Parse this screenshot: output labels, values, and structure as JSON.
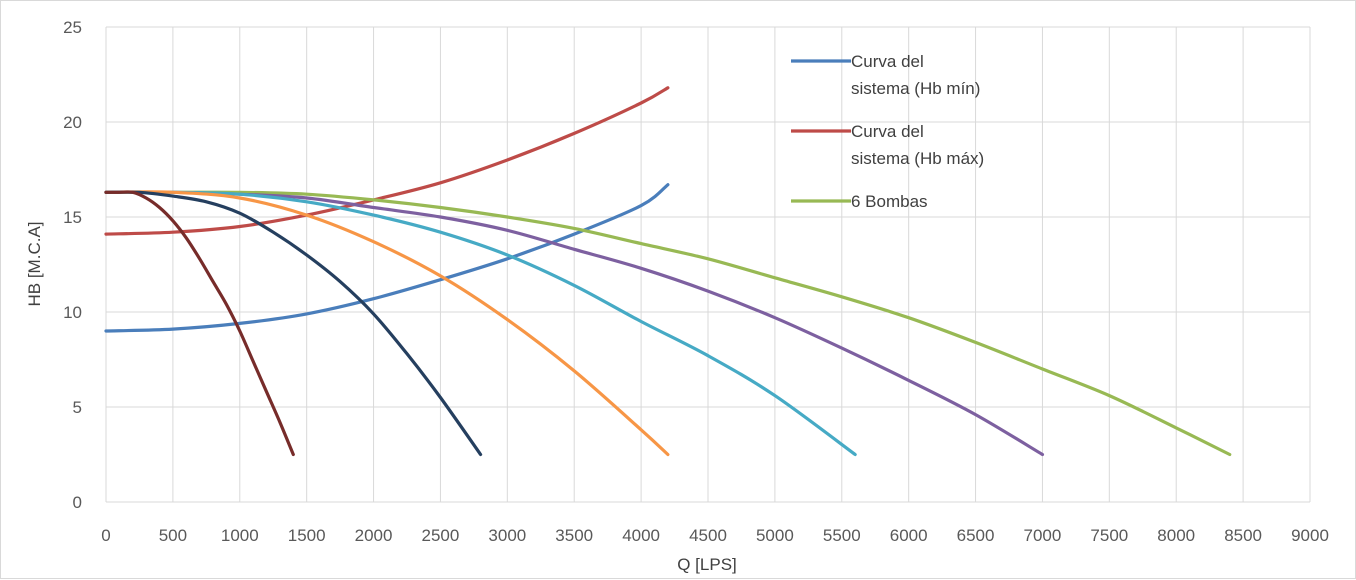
{
  "chart_data": {
    "type": "line",
    "title": "",
    "xlabel": "Q [LPS]",
    "ylabel": "HB [M.C.A]",
    "xlim": [
      0,
      9000
    ],
    "ylim": [
      0,
      25
    ],
    "x_ticks": [
      "0",
      "500",
      "1000",
      "1500",
      "2000",
      "2500",
      "3000",
      "3500",
      "4000",
      "4500",
      "5000",
      "5500",
      "6000",
      "6500",
      "7000",
      "7500",
      "8000",
      "8500",
      "9000"
    ],
    "y_ticks": [
      "0",
      "5",
      "10",
      "15",
      "20",
      "25"
    ],
    "grid": true,
    "legend_position": "top-right",
    "series": [
      {
        "name": "Curva del sistema (Hb mín)",
        "legend_lines": [
          "Curva del",
          "sistema (Hb mín)"
        ],
        "color": "#4a7ebb",
        "in_legend": true,
        "x": [
          0,
          500,
          1000,
          1500,
          2000,
          2500,
          3000,
          3500,
          4000,
          4200
        ],
        "y": [
          9.0,
          9.1,
          9.4,
          9.9,
          10.7,
          11.7,
          12.8,
          14.1,
          15.6,
          16.7
        ]
      },
      {
        "name": "Curva del sistema (Hb máx)",
        "legend_lines": [
          "Curva del",
          "sistema (Hb máx)"
        ],
        "color": "#be4b48",
        "in_legend": true,
        "x": [
          0,
          500,
          1000,
          1500,
          2000,
          2500,
          3000,
          3500,
          4000,
          4200
        ],
        "y": [
          14.1,
          14.2,
          14.5,
          15.1,
          15.9,
          16.8,
          18.0,
          19.4,
          21.0,
          21.8
        ]
      },
      {
        "name": "6 Bombas",
        "legend_lines": [
          "6 Bombas"
        ],
        "color": "#98b954",
        "in_legend": true,
        "x": [
          0,
          500,
          1000,
          1500,
          2000,
          2500,
          3000,
          3500,
          4000,
          4500,
          5000,
          5500,
          6000,
          6500,
          7000,
          7500,
          8000,
          8400
        ],
        "y": [
          16.3,
          16.3,
          16.3,
          16.2,
          15.9,
          15.5,
          15.0,
          14.4,
          13.6,
          12.8,
          11.8,
          10.8,
          9.7,
          8.4,
          7.0,
          5.6,
          3.9,
          2.5
        ]
      },
      {
        "color": "#7d60a0",
        "in_legend": false,
        "x": [
          0,
          500,
          1000,
          1500,
          2000,
          2500,
          3000,
          3500,
          4000,
          4500,
          5000,
          5500,
          6000,
          6500,
          7000
        ],
        "y": [
          16.3,
          16.3,
          16.2,
          16.0,
          15.5,
          15.0,
          14.3,
          13.3,
          12.3,
          11.1,
          9.7,
          8.1,
          6.4,
          4.6,
          2.5
        ]
      },
      {
        "color": "#46aac5",
        "in_legend": false,
        "x": [
          0,
          500,
          1000,
          1500,
          2000,
          2500,
          3000,
          3500,
          4000,
          4500,
          5000,
          5600
        ],
        "y": [
          16.3,
          16.3,
          16.2,
          15.8,
          15.1,
          14.2,
          13.0,
          11.4,
          9.5,
          7.7,
          5.6,
          2.5
        ]
      },
      {
        "color": "#f79646",
        "in_legend": false,
        "x": [
          0,
          500,
          1000,
          1500,
          2000,
          2500,
          3000,
          3500,
          4000,
          4200
        ],
        "y": [
          16.3,
          16.3,
          16.0,
          15.1,
          13.7,
          11.9,
          9.6,
          6.9,
          3.8,
          2.5
        ]
      },
      {
        "color": "#253f5f",
        "in_legend": false,
        "x": [
          0,
          250,
          500,
          750,
          1000,
          1250,
          1500,
          1750,
          2000,
          2250,
          2500,
          2800
        ],
        "y": [
          16.3,
          16.3,
          16.1,
          15.8,
          15.2,
          14.2,
          13.0,
          11.6,
          9.9,
          7.8,
          5.5,
          2.5
        ]
      },
      {
        "color": "#772c2a",
        "in_legend": false,
        "x": [
          0,
          100,
          200,
          300,
          400,
          500,
          600,
          700,
          800,
          900,
          1000,
          1100,
          1200,
          1300,
          1400
        ],
        "y": [
          16.3,
          16.3,
          16.3,
          16.0,
          15.5,
          14.8,
          13.9,
          12.8,
          11.6,
          10.4,
          9.0,
          7.4,
          5.8,
          4.2,
          2.5
        ]
      }
    ]
  }
}
